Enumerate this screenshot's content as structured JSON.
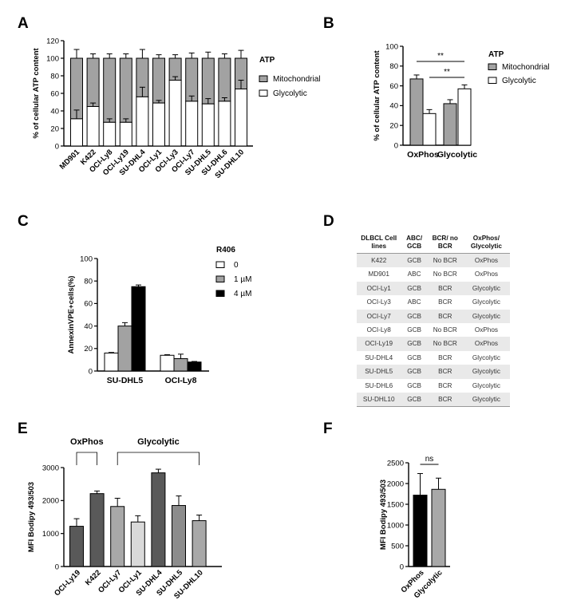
{
  "panel_labels": {
    "A": "A",
    "B": "B",
    "C": "C",
    "D": "D",
    "E": "E",
    "F": "F"
  },
  "colors": {
    "mito": "#a2a2a2",
    "glyco": "#ffffff",
    "r0": "#ffffff",
    "r1": "#a2a2a2",
    "r4": "#000000",
    "e_oxphos": "#000000",
    "e_glyco": "#a8a8a8",
    "f_oxphos": "#000000",
    "f_glyco": "#a8a8a8",
    "table_stripe": "#e9e9e9"
  },
  "chart_data": [
    {
      "id": "A",
      "type": "bar",
      "stacked": true,
      "categories": [
        "MD901",
        "K422",
        "OCI-Ly8",
        "OCI-Ly19",
        "SU-DHL4",
        "OCI-Ly1",
        "OCI-Ly3",
        "OCI-Ly7",
        "SU-DHL5",
        "SU-DHL6",
        "SU-DHL10"
      ],
      "series": [
        {
          "name": "Glycolytic",
          "values": [
            31,
            45,
            27,
            27,
            56,
            49,
            75,
            51,
            48,
            51,
            65
          ],
          "errors": [
            10,
            4,
            4,
            4,
            11,
            3,
            4,
            6,
            6,
            4,
            10
          ]
        },
        {
          "name": "Mitochondrial",
          "values": [
            69,
            55,
            73,
            73,
            44,
            51,
            25,
            49,
            52,
            49,
            35
          ],
          "errors": [
            10,
            5,
            5,
            5,
            10,
            4,
            4,
            6,
            7,
            5,
            9
          ]
        }
      ],
      "ylabel": "% of cellular ATP content",
      "ylim": [
        0,
        120
      ],
      "yticks": [
        0,
        20,
        40,
        60,
        80,
        100,
        120
      ],
      "legend_title": "ATP",
      "legend": [
        "Mitochondrial",
        "Glycolytic"
      ]
    },
    {
      "id": "B",
      "type": "bar",
      "categories": [
        "OxPhos",
        "Glycolytic"
      ],
      "series": [
        {
          "name": "Mitochondrial",
          "values": [
            67,
            42
          ],
          "errors": [
            4,
            4
          ]
        },
        {
          "name": "Glycolytic",
          "values": [
            32,
            57
          ],
          "errors": [
            4,
            4
          ]
        }
      ],
      "ylabel": "% of cellular ATP content",
      "ylim": [
        0,
        100
      ],
      "yticks": [
        0,
        20,
        40,
        60,
        80,
        100
      ],
      "legend_title": "ATP",
      "legend": [
        "Mitochondrial",
        "Glycolytic"
      ],
      "significance": [
        "**",
        "**"
      ]
    },
    {
      "id": "C",
      "type": "bar",
      "categories": [
        "SU-DHL5",
        "OCI-Ly8"
      ],
      "series": [
        {
          "name": "0",
          "values": [
            16,
            14
          ],
          "errors": [
            0.5,
            0.5
          ]
        },
        {
          "name": "1 µM",
          "values": [
            40,
            11
          ],
          "errors": [
            3,
            4
          ]
        },
        {
          "name": "4 µM",
          "values": [
            75,
            8
          ],
          "errors": [
            1.5,
            0.5
          ]
        }
      ],
      "ylabel": "AnnexinVPE+cells(%)",
      "ylim": [
        0,
        100
      ],
      "yticks": [
        0,
        20,
        40,
        60,
        80,
        100
      ],
      "legend_title": "R406",
      "legend": [
        "0",
        "1 µM",
        "4 µM"
      ]
    },
    {
      "id": "E",
      "type": "bar",
      "categories": [
        "OCI-Ly19",
        "K422",
        "OCI-Ly7",
        "OCI-Ly1",
        "SU-DHL4",
        "SU-DHL5",
        "SU-DHL10"
      ],
      "values": [
        1220,
        2210,
        1820,
        1350,
        2840,
        1850,
        1390
      ],
      "errors": [
        230,
        80,
        250,
        190,
        110,
        290,
        170
      ],
      "bar_colors": [
        "#595959",
        "#595959",
        "#a8a8a8",
        "#d9d9d9",
        "#595959",
        "#8c8c8c",
        "#a8a8a8"
      ],
      "groups": [
        {
          "label": "OxPhos",
          "from": 0,
          "to": 1
        },
        {
          "label": "Glycolytic",
          "from": 2,
          "to": 6
        }
      ],
      "ylabel": "MFI Bodipy 493/503",
      "ylim": [
        0,
        3000
      ],
      "yticks": [
        0,
        1000,
        2000,
        3000
      ]
    },
    {
      "id": "F",
      "type": "bar",
      "categories": [
        "OxPhos",
        "Glycolytic"
      ],
      "values": [
        1720,
        1860
      ],
      "errors": [
        520,
        270
      ],
      "ylabel": "MFI Bodipy 493/503",
      "ylim": [
        0,
        2500
      ],
      "yticks": [
        0,
        500,
        1000,
        1500,
        2000,
        2500
      ],
      "significance": [
        "ns"
      ]
    },
    {
      "id": "D",
      "type": "table",
      "headers": [
        "DLBCL Cell lines",
        "ABC/ GCB",
        "BCR/ no BCR",
        "OxPhos/ Glycolytic"
      ],
      "rows": [
        [
          "K422",
          "GCB",
          "No BCR",
          "OxPhos"
        ],
        [
          "MD901",
          "ABC",
          "No BCR",
          "OxPhos"
        ],
        [
          "OCI-Ly1",
          "GCB",
          "BCR",
          "Glycolytic"
        ],
        [
          "OCI-Ly3",
          "ABC",
          "BCR",
          "Glycolytic"
        ],
        [
          "OCI-Ly7",
          "GCB",
          "BCR",
          "Glycolytic"
        ],
        [
          "OCI-Ly8",
          "GCB",
          "No BCR",
          "OxPhos"
        ],
        [
          "OCI-Ly19",
          "GCB",
          "No BCR",
          "OxPhos"
        ],
        [
          "SU-DHL4",
          "GCB",
          "BCR",
          "Glycolytic"
        ],
        [
          "SU-DHL5",
          "GCB",
          "BCR",
          "Glycolytic"
        ],
        [
          "SU-DHL6",
          "GCB",
          "BCR",
          "Glycolytic"
        ],
        [
          "SU-DHL10",
          "GCB",
          "BCR",
          "Glycolytic"
        ]
      ]
    }
  ]
}
